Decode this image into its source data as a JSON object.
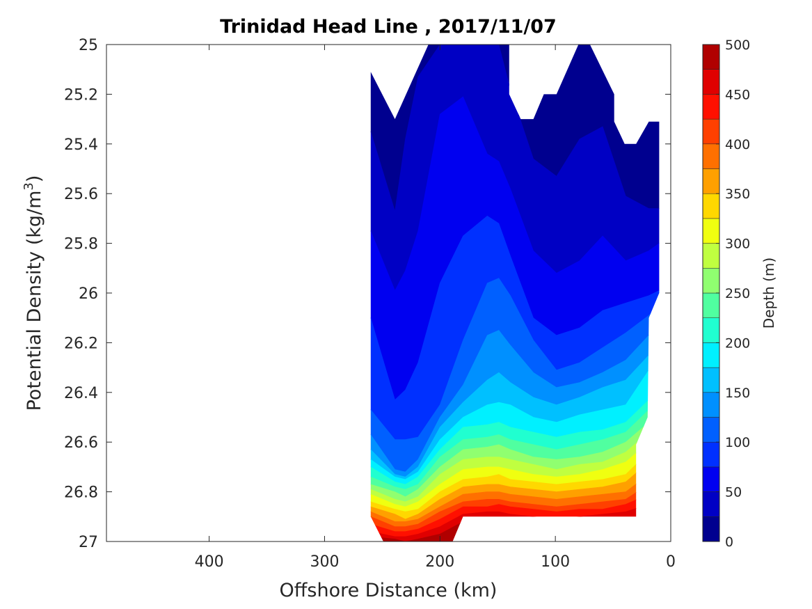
{
  "chart_data": {
    "type": "contourf",
    "title": "Trinidad Head Line , 2017/11/07",
    "xlabel": "Offshore Distance (km)",
    "ylabel": "Potential Density (kg/m",
    "ylabel_superscript": "3",
    "ylabel_suffix": ")",
    "colorbar_label": "Depth (m)",
    "xlim": [
      0,
      489
    ],
    "x_reversed": true,
    "ylim": [
      25,
      27
    ],
    "y_reversed": true,
    "xticks": [
      400,
      300,
      200,
      100,
      0
    ],
    "xtick_labels": [
      "400",
      "300",
      "200",
      "100",
      "0"
    ],
    "yticks": [
      25,
      25.2,
      25.4,
      25.6,
      25.8,
      26,
      26.2,
      26.4,
      26.6,
      26.8,
      27
    ],
    "ytick_labels": [
      "25",
      "25.2",
      "25.4",
      "25.6",
      "25.8",
      "26",
      "26.2",
      "26.4",
      "26.6",
      "26.8",
      "27"
    ],
    "colorbar_ticks": [
      0,
      50,
      100,
      150,
      200,
      250,
      300,
      350,
      400,
      450,
      500
    ],
    "colorbar_tick_labels": [
      "0",
      "50",
      "100",
      "150",
      "200",
      "250",
      "300",
      "350",
      "400",
      "450",
      "500"
    ],
    "colorbar_range": [
      0,
      500
    ],
    "levels": [
      0,
      25,
      50,
      75,
      100,
      125,
      150,
      175,
      200,
      225,
      250,
      275,
      300,
      325,
      350,
      375,
      400,
      425,
      450,
      475,
      500
    ],
    "colors": [
      "#00008f",
      "#0000c4",
      "#0000f0",
      "#0030ff",
      "#0060ff",
      "#0090ff",
      "#00c0ff",
      "#00f0ff",
      "#20ffd0",
      "#50ffa0",
      "#90ff70",
      "#c0ff40",
      "#f0ff10",
      "#ffd800",
      "#ffa000",
      "#ff7000",
      "#ff4000",
      "#ff1000",
      "#e00000",
      "#b00000"
    ],
    "data_outline": [
      [
        260,
        25.11
      ],
      [
        239,
        25.3
      ],
      [
        210,
        25.0
      ],
      [
        140,
        25.0
      ],
      [
        140,
        25.2
      ],
      [
        130,
        25.3
      ],
      [
        119,
        25.3
      ],
      [
        110,
        25.2
      ],
      [
        99,
        25.2
      ],
      [
        80,
        25.0
      ],
      [
        70,
        25.0
      ],
      [
        49,
        25.2
      ],
      [
        49,
        25.31
      ],
      [
        40,
        25.4
      ],
      [
        30,
        25.4
      ],
      [
        19,
        25.31
      ],
      [
        10,
        25.31
      ],
      [
        10,
        26.0
      ],
      [
        19,
        26.1
      ],
      [
        20,
        26.5
      ],
      [
        30,
        26.61
      ],
      [
        30,
        26.9
      ],
      [
        180,
        26.9
      ],
      [
        189,
        27.0
      ],
      [
        249,
        27.0
      ],
      [
        260,
        26.9
      ]
    ],
    "station_km": [
      260,
      239,
      230,
      219,
      200,
      180,
      159,
      149,
      139,
      119,
      99,
      79,
      59,
      39,
      19,
      10
    ],
    "isolines": [
      {
        "level": 25,
        "density": [
          25.35,
          25.67,
          25.38,
          25.13,
          24.93,
          24.93,
          24.93,
          24.93,
          25.18,
          25.46,
          25.53,
          25.38,
          25.33,
          25.61,
          25.66,
          25.66
        ]
      },
      {
        "level": 50,
        "density": [
          25.75,
          25.99,
          25.91,
          25.75,
          25.28,
          25.21,
          25.44,
          25.47,
          25.58,
          25.83,
          25.92,
          25.87,
          25.77,
          25.87,
          25.83,
          25.8
        ]
      },
      {
        "level": 75,
        "density": [
          26.1,
          26.43,
          26.39,
          26.28,
          25.96,
          25.77,
          25.69,
          25.72,
          25.85,
          26.1,
          26.17,
          26.14,
          26.07,
          26.04,
          26.01,
          25.99
        ]
      },
      {
        "level": 100,
        "density": [
          26.47,
          26.59,
          26.59,
          26.58,
          26.45,
          26.19,
          25.96,
          25.94,
          26.01,
          26.19,
          26.31,
          26.28,
          26.22,
          26.16,
          26.09,
          26.05
        ]
      },
      {
        "level": 125,
        "density": [
          26.57,
          26.71,
          26.72,
          26.67,
          26.5,
          26.37,
          26.17,
          26.15,
          26.21,
          26.32,
          26.38,
          26.36,
          26.32,
          26.27,
          26.17,
          26.14
        ]
      },
      {
        "level": 150,
        "density": [
          26.63,
          26.73,
          26.74,
          26.7,
          26.54,
          26.44,
          26.35,
          26.32,
          26.36,
          26.42,
          26.45,
          26.42,
          26.38,
          26.35,
          26.25,
          26.22
        ]
      },
      {
        "level": 175,
        "density": [
          26.67,
          26.74,
          26.75,
          26.72,
          26.59,
          26.5,
          26.45,
          26.44,
          26.45,
          26.5,
          26.52,
          26.49,
          26.47,
          26.45,
          26.31,
          26.28
        ]
      },
      {
        "level": 200,
        "density": [
          26.7,
          26.76,
          26.77,
          26.74,
          26.63,
          26.54,
          26.53,
          26.52,
          26.54,
          26.56,
          26.58,
          26.56,
          26.55,
          26.52,
          26.43,
          26.39
        ]
      },
      {
        "level": 225,
        "density": [
          26.74,
          26.78,
          26.79,
          26.77,
          26.66,
          26.59,
          26.58,
          26.57,
          26.59,
          26.61,
          26.63,
          26.61,
          26.59,
          26.56,
          26.47,
          26.43
        ]
      },
      {
        "level": 250,
        "density": [
          26.77,
          26.8,
          26.82,
          26.79,
          26.7,
          26.63,
          26.62,
          26.61,
          26.63,
          26.66,
          26.67,
          26.66,
          26.64,
          26.6,
          26.52,
          26.47
        ]
      },
      {
        "level": 275,
        "density": [
          26.79,
          26.83,
          26.84,
          26.82,
          26.73,
          26.67,
          26.66,
          26.66,
          26.67,
          26.69,
          26.71,
          26.69,
          26.68,
          26.64,
          26.56,
          26.52
        ]
      },
      {
        "level": 300,
        "density": [
          26.81,
          26.85,
          26.86,
          26.84,
          26.77,
          26.71,
          26.7,
          26.7,
          26.71,
          26.73,
          26.74,
          26.73,
          26.71,
          26.68,
          26.6,
          26.56
        ]
      },
      {
        "level": 325,
        "density": [
          26.84,
          26.87,
          26.88,
          26.87,
          26.8,
          26.75,
          26.74,
          26.73,
          26.75,
          26.76,
          26.77,
          26.76,
          26.75,
          26.73,
          26.64,
          26.6
        ]
      },
      {
        "level": 350,
        "density": [
          26.86,
          26.89,
          26.91,
          26.89,
          26.83,
          26.78,
          26.77,
          26.77,
          26.78,
          26.79,
          26.8,
          26.79,
          26.78,
          26.76,
          26.68,
          26.64
        ]
      },
      {
        "level": 375,
        "density": [
          26.88,
          26.92,
          26.92,
          26.91,
          26.86,
          26.81,
          26.8,
          26.8,
          26.81,
          26.82,
          26.83,
          26.82,
          26.81,
          26.8,
          26.73,
          26.68
        ]
      },
      {
        "level": 400,
        "density": [
          26.9,
          26.94,
          26.94,
          26.93,
          26.88,
          26.84,
          26.83,
          26.83,
          26.84,
          26.85,
          26.86,
          26.85,
          26.84,
          26.83,
          26.77,
          26.73
        ]
      },
      {
        "level": 425,
        "density": [
          26.93,
          26.96,
          26.96,
          26.95,
          26.91,
          26.86,
          26.86,
          26.85,
          26.86,
          26.87,
          26.88,
          26.87,
          26.87,
          26.85,
          26.81,
          26.77
        ]
      },
      {
        "level": 450,
        "density": [
          26.96,
          26.98,
          26.98,
          26.97,
          26.94,
          26.89,
          26.88,
          26.88,
          26.89,
          26.9,
          26.91,
          26.9,
          26.89,
          26.88,
          26.85,
          26.81
        ]
      },
      {
        "level": 475,
        "density": [
          26.98,
          26.99,
          27.0,
          26.99,
          26.97,
          26.92,
          26.93,
          26.93,
          26.94,
          26.94,
          26.95,
          26.94,
          26.94,
          26.92,
          26.89,
          26.85
        ]
      }
    ],
    "grid": false,
    "colorbar_placement": "right"
  }
}
